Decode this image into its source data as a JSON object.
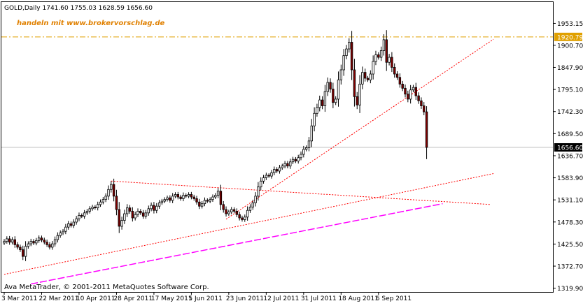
{
  "header": {
    "symbol_line": "GOLD,Daily  1741.60 1755.03 1628.59 1656.60",
    "watermark": "handeln mit www.brokervorschlag.de",
    "copyright": "Ava MetaTrader, © 2001-2011 MetaQuotes Software Corp."
  },
  "colors": {
    "bull_candle": "#000000",
    "bear_candle": "#800000",
    "trendline": "#ff0000",
    "moving_average": "#ff00ff",
    "resistance_line": "#e0a000",
    "price_label_bg": "#000000",
    "resistance_label_bg": "#e0a000"
  },
  "chart_data": {
    "type": "candlestick",
    "symbol": "GOLD",
    "timeframe": "Daily",
    "last_bar": {
      "open": 1741.6,
      "high": 1755.03,
      "low": 1628.59,
      "close": 1656.6
    },
    "current_price": 1656.6,
    "current_price_label": "1656.60",
    "resistance_level": 1920.79,
    "resistance_label": "1920.79",
    "ylim": [
      1311.0,
      2004.0
    ],
    "y_ticks": [
      {
        "value": 1953.15,
        "label": "1953.15"
      },
      {
        "value": 1900.7,
        "label": "1900.70"
      },
      {
        "value": 1847.9,
        "label": "1847.90"
      },
      {
        "value": 1795.1,
        "label": "1795.10"
      },
      {
        "value": 1742.3,
        "label": "1742.30"
      },
      {
        "value": 1689.5,
        "label": "1689.50"
      },
      {
        "value": 1636.7,
        "label": "1636.70"
      },
      {
        "value": 1583.9,
        "label": "1583.90"
      },
      {
        "value": 1531.1,
        "label": "1531.10"
      },
      {
        "value": 1478.3,
        "label": "1478.30"
      },
      {
        "value": 1425.5,
        "label": "1425.50"
      },
      {
        "value": 1372.7,
        "label": "1372.70"
      },
      {
        "value": 1319.9,
        "label": "1319.90"
      }
    ],
    "x_ticks": [
      {
        "bar": 0,
        "label": "3 Mar 2011"
      },
      {
        "bar": 14,
        "label": "22 Mar 2011"
      },
      {
        "bar": 28,
        "label": "10 Apr 2011"
      },
      {
        "bar": 42,
        "label": "28 Apr 2011"
      },
      {
        "bar": 56,
        "label": "17 May 2011"
      },
      {
        "bar": 70,
        "label": "5 Jun 2011"
      },
      {
        "bar": 84,
        "label": "23 Jun 2011"
      },
      {
        "bar": 98,
        "label": "12 Jul 2011"
      },
      {
        "bar": 112,
        "label": "31 Jul 2011"
      },
      {
        "bar": 126,
        "label": "18 Aug 2011"
      },
      {
        "bar": 140,
        "label": "6 Sep 2011"
      }
    ],
    "closes": [
      1432,
      1438,
      1430,
      1436,
      1424,
      1418,
      1412,
      1396,
      1420,
      1426,
      1432,
      1428,
      1434,
      1440,
      1435,
      1430,
      1424,
      1418,
      1426,
      1436,
      1446,
      1452,
      1456,
      1466,
      1474,
      1470,
      1478,
      1486,
      1494,
      1492,
      1500,
      1504,
      1510,
      1514,
      1512,
      1520,
      1526,
      1532,
      1540,
      1556,
      1568,
      1540,
      1508,
      1468,
      1482,
      1498,
      1512,
      1504,
      1488,
      1496,
      1504,
      1500,
      1492,
      1500,
      1510,
      1518,
      1506,
      1516,
      1524,
      1528,
      1532,
      1536,
      1530,
      1540,
      1544,
      1538,
      1534,
      1542,
      1540,
      1544,
      1538,
      1534,
      1526,
      1516,
      1522,
      1530,
      1528,
      1532,
      1538,
      1542,
      1552,
      1520,
      1508,
      1498,
      1502,
      1508,
      1504,
      1496,
      1488,
      1484,
      1490,
      1506,
      1514,
      1524,
      1540,
      1562,
      1576,
      1584,
      1590,
      1588,
      1596,
      1604,
      1600,
      1608,
      1612,
      1618,
      1612,
      1622,
      1628,
      1624,
      1632,
      1640,
      1652,
      1656,
      1672,
      1708,
      1738,
      1752,
      1770,
      1756,
      1790,
      1812,
      1796,
      1764,
      1772,
      1818,
      1842,
      1876,
      1892,
      1908,
      1842,
      1778,
      1758,
      1808,
      1836,
      1822,
      1818,
      1832,
      1862,
      1878,
      1872,
      1888,
      1914,
      1860,
      1872,
      1848,
      1832,
      1824,
      1808,
      1798,
      1784,
      1772,
      1794,
      1800,
      1780,
      1768,
      1756,
      1741.6,
      1656.6
    ],
    "moving_average": {
      "from_bar": 10,
      "to_bar": 164,
      "from_value": 1330,
      "to_value": 1522
    },
    "trendlines": [
      {
        "from_bar": 0,
        "from_value": 1353,
        "to_bar": 183,
        "to_value": 1594
      },
      {
        "from_bar": 40,
        "from_value": 1576,
        "to_bar": 182,
        "to_value": 1520
      },
      {
        "from_bar": 83,
        "from_value": 1485,
        "to_bar": 183,
        "to_value": 1915
      }
    ]
  }
}
